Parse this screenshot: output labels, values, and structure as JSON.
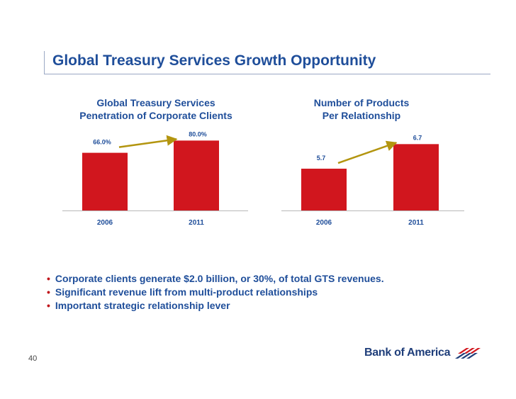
{
  "slide": {
    "title": "Global Treasury Services Growth Opportunity",
    "page_number": "40",
    "bullets": [
      "Corporate clients generate $2.0 billion, or 30%, of total GTS revenues.",
      "Significant revenue lift from multi-product relationships",
      "Important strategic relationship lever"
    ],
    "bullet_glyph": "•",
    "logo_text": "Bank of America",
    "colors": {
      "title": "#1f4e9a",
      "bar": "#d1161e",
      "arrow": "#b3950f",
      "bullet": "#c0151b"
    }
  },
  "chart_data": [
    {
      "type": "bar",
      "title_lines": [
        "Global Treasury Services",
        "Penetration of Corporate Clients"
      ],
      "categories": [
        "2006",
        "2011"
      ],
      "values": [
        66.0,
        80.0
      ],
      "value_labels": [
        "66.0%",
        "80.0%"
      ],
      "xlabel": "",
      "ylabel": "",
      "ylim": [
        0,
        90
      ],
      "annotation": "arrow from 2006 bar to 2011 bar"
    },
    {
      "type": "bar",
      "title_lines": [
        "Number of Products",
        "Per Relationship"
      ],
      "categories": [
        "2006",
        "2011"
      ],
      "values": [
        5.7,
        6.7
      ],
      "value_labels": [
        "5.7",
        "6.7"
      ],
      "xlabel": "",
      "ylabel": "",
      "ylim": [
        4,
        7.2
      ],
      "annotation": "arrow from 2006 bar to 2011 bar"
    }
  ]
}
